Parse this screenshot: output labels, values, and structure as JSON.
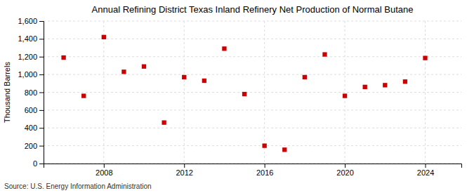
{
  "chart_data": {
    "type": "scatter",
    "title": "Annual Refining District Texas Inland Refinery Net Production of Normal Butane",
    "ylabel": "Thousand Barrels",
    "source": "Source: U.S. Energy Information Administration",
    "x": [
      2006,
      2007,
      2008,
      2009,
      2010,
      2011,
      2012,
      2013,
      2014,
      2015,
      2016,
      2017,
      2018,
      2019,
      2020,
      2021,
      2022,
      2023,
      2024
    ],
    "values": [
      1190,
      760,
      1420,
      1030,
      1090,
      460,
      970,
      930,
      1290,
      780,
      200,
      155,
      970,
      1225,
      760,
      860,
      880,
      920,
      1185
    ],
    "color": "#cc0000",
    "marker": "square",
    "xlim": [
      2005.0,
      2025.8
    ],
    "xticks": [
      2008,
      2012,
      2016,
      2020,
      2024
    ],
    "ylim": [
      0,
      1600
    ],
    "yticks": [
      0,
      200,
      400,
      600,
      800,
      {
        "value": 1000,
        "label": "1,000"
      },
      {
        "value": 1200,
        "label": "1,200"
      },
      {
        "value": 1400,
        "label": "1,400"
      },
      {
        "value": 1600,
        "label": "1,600"
      }
    ],
    "grid": true
  }
}
